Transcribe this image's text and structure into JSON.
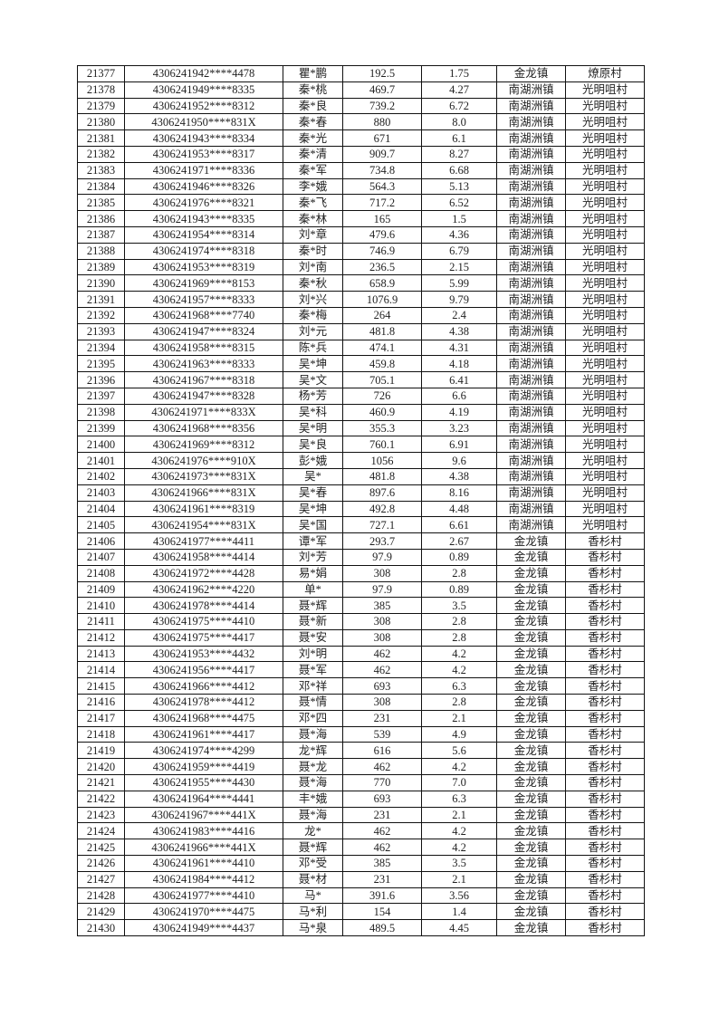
{
  "table": {
    "rows": [
      [
        "21377",
        "4306241942****4478",
        "瞿*鹏",
        "192.5",
        "1.75",
        "金龙镇",
        "燎原村"
      ],
      [
        "21378",
        "4306241949****8335",
        "秦*桃",
        "469.7",
        "4.27",
        "南湖洲镇",
        "光明咀村"
      ],
      [
        "21379",
        "4306241952****8312",
        "秦*良",
        "739.2",
        "6.72",
        "南湖洲镇",
        "光明咀村"
      ],
      [
        "21380",
        "4306241950****831X",
        "秦*春",
        "880",
        "8.0",
        "南湖洲镇",
        "光明咀村"
      ],
      [
        "21381",
        "4306241943****8334",
        "秦*光",
        "671",
        "6.1",
        "南湖洲镇",
        "光明咀村"
      ],
      [
        "21382",
        "4306241953****8317",
        "秦*清",
        "909.7",
        "8.27",
        "南湖洲镇",
        "光明咀村"
      ],
      [
        "21383",
        "4306241971****8336",
        "秦*军",
        "734.8",
        "6.68",
        "南湖洲镇",
        "光明咀村"
      ],
      [
        "21384",
        "4306241946****8326",
        "李*娥",
        "564.3",
        "5.13",
        "南湖洲镇",
        "光明咀村"
      ],
      [
        "21385",
        "4306241976****8321",
        "秦*飞",
        "717.2",
        "6.52",
        "南湖洲镇",
        "光明咀村"
      ],
      [
        "21386",
        "4306241943****8335",
        "秦*林",
        "165",
        "1.5",
        "南湖洲镇",
        "光明咀村"
      ],
      [
        "21387",
        "4306241954****8314",
        "刘*章",
        "479.6",
        "4.36",
        "南湖洲镇",
        "光明咀村"
      ],
      [
        "21388",
        "4306241974****8318",
        "秦*时",
        "746.9",
        "6.79",
        "南湖洲镇",
        "光明咀村"
      ],
      [
        "21389",
        "4306241953****8319",
        "刘*南",
        "236.5",
        "2.15",
        "南湖洲镇",
        "光明咀村"
      ],
      [
        "21390",
        "4306241969****8153",
        "秦*秋",
        "658.9",
        "5.99",
        "南湖洲镇",
        "光明咀村"
      ],
      [
        "21391",
        "4306241957****8333",
        "刘*兴",
        "1076.9",
        "9.79",
        "南湖洲镇",
        "光明咀村"
      ],
      [
        "21392",
        "4306241968****7740",
        "秦*梅",
        "264",
        "2.4",
        "南湖洲镇",
        "光明咀村"
      ],
      [
        "21393",
        "4306241947****8324",
        "刘*元",
        "481.8",
        "4.38",
        "南湖洲镇",
        "光明咀村"
      ],
      [
        "21394",
        "4306241958****8315",
        "陈*兵",
        "474.1",
        "4.31",
        "南湖洲镇",
        "光明咀村"
      ],
      [
        "21395",
        "4306241963****8333",
        "吴*坤",
        "459.8",
        "4.18",
        "南湖洲镇",
        "光明咀村"
      ],
      [
        "21396",
        "4306241967****8318",
        "吴*文",
        "705.1",
        "6.41",
        "南湖洲镇",
        "光明咀村"
      ],
      [
        "21397",
        "4306241947****8328",
        "杨*芳",
        "726",
        "6.6",
        "南湖洲镇",
        "光明咀村"
      ],
      [
        "21398",
        "4306241971****833X",
        "吴*科",
        "460.9",
        "4.19",
        "南湖洲镇",
        "光明咀村"
      ],
      [
        "21399",
        "4306241968****8356",
        "吴*明",
        "355.3",
        "3.23",
        "南湖洲镇",
        "光明咀村"
      ],
      [
        "21400",
        "4306241969****8312",
        "吴*良",
        "760.1",
        "6.91",
        "南湖洲镇",
        "光明咀村"
      ],
      [
        "21401",
        "4306241976****910X",
        "彭*娥",
        "1056",
        "9.6",
        "南湖洲镇",
        "光明咀村"
      ],
      [
        "21402",
        "4306241973****831X",
        "吴*",
        "481.8",
        "4.38",
        "南湖洲镇",
        "光明咀村"
      ],
      [
        "21403",
        "4306241966****831X",
        "吴*春",
        "897.6",
        "8.16",
        "南湖洲镇",
        "光明咀村"
      ],
      [
        "21404",
        "4306241961****8319",
        "吴*坤",
        "492.8",
        "4.48",
        "南湖洲镇",
        "光明咀村"
      ],
      [
        "21405",
        "4306241954****831X",
        "吴*国",
        "727.1",
        "6.61",
        "南湖洲镇",
        "光明咀村"
      ],
      [
        "21406",
        "4306241977****4411",
        "谭*军",
        "293.7",
        "2.67",
        "金龙镇",
        "香杉村"
      ],
      [
        "21407",
        "4306241958****4414",
        "刘*芳",
        "97.9",
        "0.89",
        "金龙镇",
        "香杉村"
      ],
      [
        "21408",
        "4306241972****4428",
        "易*娟",
        "308",
        "2.8",
        "金龙镇",
        "香杉村"
      ],
      [
        "21409",
        "4306241962****4220",
        "单*",
        "97.9",
        "0.89",
        "金龙镇",
        "香杉村"
      ],
      [
        "21410",
        "4306241978****4414",
        "聂*辉",
        "385",
        "3.5",
        "金龙镇",
        "香杉村"
      ],
      [
        "21411",
        "4306241975****4410",
        "聂*新",
        "308",
        "2.8",
        "金龙镇",
        "香杉村"
      ],
      [
        "21412",
        "4306241975****4417",
        "聂*安",
        "308",
        "2.8",
        "金龙镇",
        "香杉村"
      ],
      [
        "21413",
        "4306241953****4432",
        "刘*明",
        "462",
        "4.2",
        "金龙镇",
        "香杉村"
      ],
      [
        "21414",
        "4306241956****4417",
        "聂*军",
        "462",
        "4.2",
        "金龙镇",
        "香杉村"
      ],
      [
        "21415",
        "4306241966****4412",
        "邓*祥",
        "693",
        "6.3",
        "金龙镇",
        "香杉村"
      ],
      [
        "21416",
        "4306241978****4412",
        "聂*情",
        "308",
        "2.8",
        "金龙镇",
        "香杉村"
      ],
      [
        "21417",
        "4306241968****4475",
        "邓*四",
        "231",
        "2.1",
        "金龙镇",
        "香杉村"
      ],
      [
        "21418",
        "4306241961****4417",
        "聂*海",
        "539",
        "4.9",
        "金龙镇",
        "香杉村"
      ],
      [
        "21419",
        "4306241974****4299",
        "龙*辉",
        "616",
        "5.6",
        "金龙镇",
        "香杉村"
      ],
      [
        "21420",
        "4306241959****4419",
        "聂*龙",
        "462",
        "4.2",
        "金龙镇",
        "香杉村"
      ],
      [
        "21421",
        "4306241955****4430",
        "聂*海",
        "770",
        "7.0",
        "金龙镇",
        "香杉村"
      ],
      [
        "21422",
        "4306241964****4441",
        "丰*娥",
        "693",
        "6.3",
        "金龙镇",
        "香杉村"
      ],
      [
        "21423",
        "4306241967****441X",
        "聂*海",
        "231",
        "2.1",
        "金龙镇",
        "香杉村"
      ],
      [
        "21424",
        "4306241983****4416",
        "龙*",
        "462",
        "4.2",
        "金龙镇",
        "香杉村"
      ],
      [
        "21425",
        "4306241966****441X",
        "聂*辉",
        "462",
        "4.2",
        "金龙镇",
        "香杉村"
      ],
      [
        "21426",
        "4306241961****4410",
        "邓*受",
        "385",
        "3.5",
        "金龙镇",
        "香杉村"
      ],
      [
        "21427",
        "4306241984****4412",
        "聂*材",
        "231",
        "2.1",
        "金龙镇",
        "香杉村"
      ],
      [
        "21428",
        "4306241977****4410",
        "马*",
        "391.6",
        "3.56",
        "金龙镇",
        "香杉村"
      ],
      [
        "21429",
        "4306241970****4475",
        "马*利",
        "154",
        "1.4",
        "金龙镇",
        "香杉村"
      ],
      [
        "21430",
        "4306241949****4437",
        "马*泉",
        "489.5",
        "4.45",
        "金龙镇",
        "香杉村"
      ]
    ]
  }
}
